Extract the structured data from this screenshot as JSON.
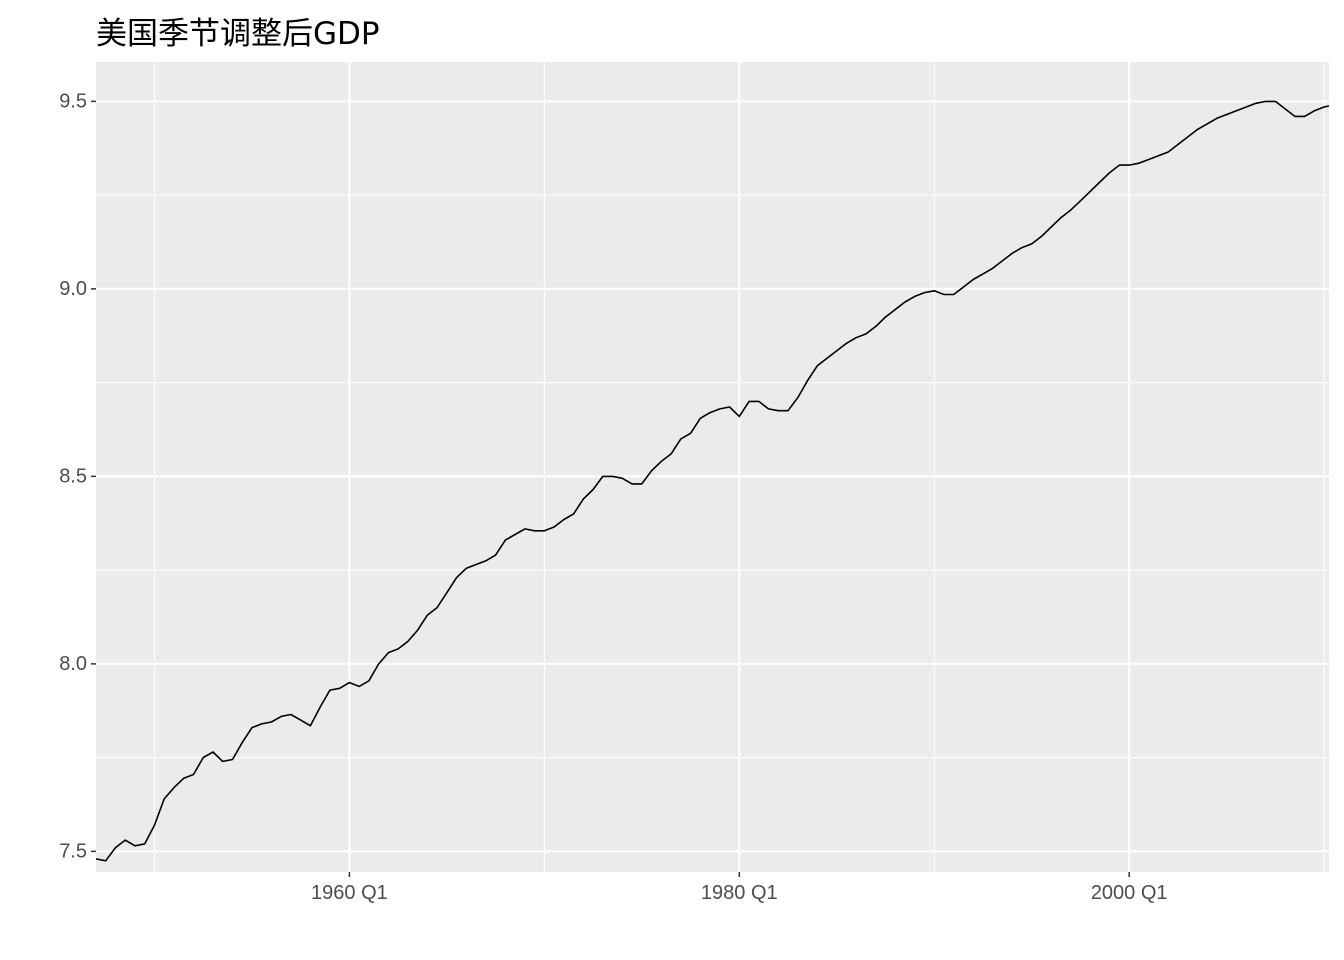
{
  "chart_data": {
    "type": "line",
    "title": "美国季节调整后GDP",
    "xlabel": "",
    "ylabel": "",
    "xlim": [
      1947.0,
      2010.25
    ],
    "ylim": [
      7.445,
      9.605
    ],
    "x_ticks": [
      {
        "value": 1960.0,
        "label": "1960 Q1"
      },
      {
        "value": 1980.0,
        "label": "1980 Q1"
      },
      {
        "value": 2000.0,
        "label": "2000 Q1"
      }
    ],
    "x_minor_ticks": [
      1950.0,
      1970.0,
      1990.0,
      2010.0
    ],
    "y_ticks": [
      {
        "value": 7.5,
        "label": "7.5"
      },
      {
        "value": 8.0,
        "label": "8.0"
      },
      {
        "value": 8.5,
        "label": "8.5"
      },
      {
        "value": 9.0,
        "label": "9.0"
      },
      {
        "value": 9.5,
        "label": "9.5"
      }
    ],
    "y_minor_ticks": [
      7.75,
      8.25,
      8.75,
      9.25
    ],
    "grid": true,
    "panel_color": "#ebebeb",
    "grid_color": "#ffffff",
    "line_color": "#000000",
    "series": [
      {
        "x": [
          1947.0,
          1947.5,
          1948.0,
          1948.5,
          1949.0,
          1949.5,
          1950.0,
          1950.5,
          1951.0,
          1951.5,
          1952.0,
          1952.5,
          1953.0,
          1953.5,
          1954.0,
          1954.5,
          1955.0,
          1955.5,
          1956.0,
          1956.5,
          1957.0,
          1957.5,
          1958.0,
          1958.5,
          1959.0,
          1959.5,
          1960.0,
          1960.5,
          1961.0,
          1961.5,
          1962.0,
          1962.5,
          1963.0,
          1963.5,
          1964.0,
          1964.5,
          1965.0,
          1965.5,
          1966.0,
          1966.5,
          1967.0,
          1967.5,
          1968.0,
          1968.5,
          1969.0,
          1969.5,
          1970.0,
          1970.5,
          1971.0,
          1971.5,
          1972.0,
          1972.5,
          1973.0,
          1973.5,
          1974.0,
          1974.5,
          1975.0,
          1975.5,
          1976.0,
          1976.5,
          1977.0,
          1977.5,
          1978.0,
          1978.5,
          1979.0,
          1979.5,
          1980.0,
          1980.5,
          1981.0,
          1981.5,
          1982.0,
          1982.5,
          1983.0,
          1983.5,
          1984.0,
          1984.5,
          1985.0,
          1985.5,
          1986.0,
          1986.5,
          1987.0,
          1987.5,
          1988.0,
          1988.5,
          1989.0,
          1989.5,
          1990.0,
          1990.5,
          1991.0,
          1991.5,
          1992.0,
          1992.5,
          1993.0,
          1993.5,
          1994.0,
          1994.5,
          1995.0,
          1995.5,
          1996.0,
          1996.5,
          1997.0,
          1997.5,
          1998.0,
          1998.5,
          1999.0,
          1999.5,
          2000.0,
          2000.5,
          2001.0,
          2001.5,
          2002.0,
          2002.5,
          2003.0,
          2003.5,
          2004.0,
          2004.5,
          2005.0,
          2005.5,
          2006.0,
          2006.5,
          2007.0,
          2007.5,
          2008.0,
          2008.5,
          2009.0,
          2009.5,
          2010.0,
          2010.25
        ],
        "y": [
          7.48,
          7.475,
          7.51,
          7.53,
          7.515,
          7.52,
          7.57,
          7.64,
          7.67,
          7.695,
          7.705,
          7.75,
          7.765,
          7.74,
          7.745,
          7.79,
          7.83,
          7.84,
          7.845,
          7.86,
          7.865,
          7.85,
          7.835,
          7.885,
          7.93,
          7.935,
          7.95,
          7.94,
          7.955,
          8.0,
          8.03,
          8.04,
          8.06,
          8.09,
          8.13,
          8.15,
          8.19,
          8.23,
          8.255,
          8.265,
          8.275,
          8.29,
          8.33,
          8.345,
          8.36,
          8.355,
          8.355,
          8.365,
          8.385,
          8.4,
          8.44,
          8.465,
          8.5,
          8.5,
          8.495,
          8.48,
          8.48,
          8.515,
          8.54,
          8.56,
          8.6,
          8.615,
          8.655,
          8.67,
          8.68,
          8.685,
          8.66,
          8.7,
          8.7,
          8.68,
          8.675,
          8.675,
          8.71,
          8.755,
          8.795,
          8.815,
          8.835,
          8.855,
          8.87,
          8.88,
          8.9,
          8.925,
          8.945,
          8.965,
          8.98,
          8.99,
          8.995,
          8.985,
          8.985,
          9.005,
          9.025,
          9.04,
          9.055,
          9.075,
          9.095,
          9.11,
          9.12,
          9.14,
          9.165,
          9.19,
          9.21,
          9.235,
          9.26,
          9.285,
          9.31,
          9.33,
          9.33,
          9.335,
          9.345,
          9.355,
          9.365,
          9.385,
          9.405,
          9.425,
          9.44,
          9.455,
          9.465,
          9.475,
          9.485,
          9.495,
          9.5,
          9.5,
          9.48,
          9.46,
          9.46,
          9.475,
          9.485,
          9.488
        ]
      }
    ]
  }
}
